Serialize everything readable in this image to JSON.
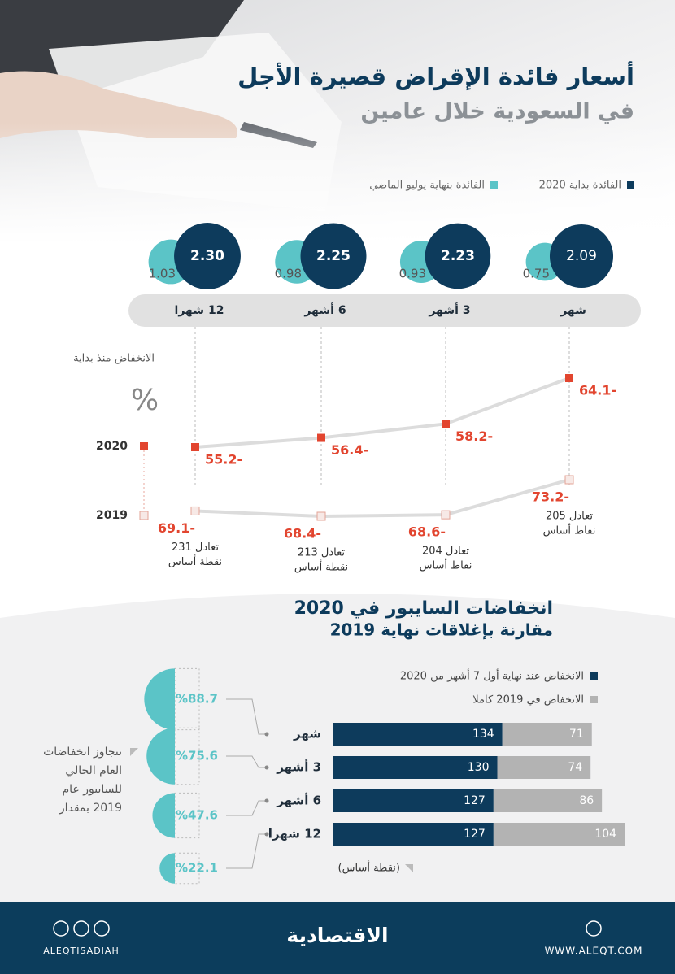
{
  "header": {
    "title": "أسعار فائدة الإقراض قصيرة الأجل",
    "subtitle": "في السعودية خلال عامين"
  },
  "chart_data": [
    {
      "type": "bubble",
      "categories": [
        "شهر",
        "3 أشهر",
        "6 أشهر",
        "12 شهرا"
      ],
      "series": [
        {
          "name": "الفائدة بداية 2020",
          "color": "#0d3b5c",
          "values": [
            2.09,
            2.23,
            2.25,
            2.3
          ],
          "value_labels": [
            "2.09",
            "2.23",
            "2.25",
            "2.30"
          ]
        },
        {
          "name": "الفائدة بنهاية يوليو الماضي",
          "color": "#5bc4c7",
          "values": [
            0.75,
            0.93,
            0.98,
            1.03
          ]
        }
      ]
    },
    {
      "type": "line",
      "ylabel": "الانخفاض منذ بداية",
      "unit": "%",
      "series": [
        {
          "name": "2020",
          "color": "#e2452f",
          "values": [
            -64.1,
            -58.2,
            -56.4,
            -55.2
          ],
          "value_labels": [
            "64.1-",
            "58.2-",
            "56.4-",
            "55.2-"
          ]
        },
        {
          "name": "2019",
          "color": "#e2452f",
          "values": [
            -73.2,
            -68.6,
            -68.4,
            -69.1
          ],
          "value_labels": [
            "73.2-",
            "68.6-",
            "68.4-",
            "69.1-"
          ],
          "annotations": [
            [
              "تعادل 205",
              "نقاط أساس"
            ],
            [
              "تعادل 204",
              "نقاط أساس"
            ],
            [
              "تعادل 213",
              "نقطة أساس"
            ],
            [
              "تعادل 231",
              "نقطة أساس"
            ]
          ]
        }
      ]
    },
    {
      "type": "bar",
      "orientation": "horizontal",
      "stacked": true,
      "title": "انخفاضات السايبور في 2020",
      "subtitle": "مقارنة بإغلاقات نهاية 2019",
      "unit": "(نقطة أساس)",
      "categories": [
        "شهر",
        "3 أشهر",
        "6 أشهر",
        "12 شهرا"
      ],
      "series": [
        {
          "name": "الانخفاض عند نهاية أول 7 أشهر من 2020",
          "color": "#0d3b5c",
          "values": [
            134,
            130,
            127,
            127
          ]
        },
        {
          "name": "الانخفاض في 2019 كاملا",
          "color": "#b3b3b3",
          "values": [
            71,
            74,
            86,
            104
          ]
        }
      ]
    },
    {
      "type": "semicircle",
      "color": "#5bc4c7",
      "annotation": [
        "تتجاوز انخفاضات",
        "العام الحالي",
        "للسايبور عام",
        "2019 بمقدار"
      ],
      "values": [
        88.7,
        75.6,
        47.6,
        22.1
      ],
      "value_labels": [
        "%88.7",
        "%75.6",
        "%47.6",
        "%22.1"
      ]
    }
  ],
  "footer": {
    "social": "ALEQTISADIAH",
    "logo": "الاقتصادية",
    "website": "WWW.ALEQT.COM"
  }
}
